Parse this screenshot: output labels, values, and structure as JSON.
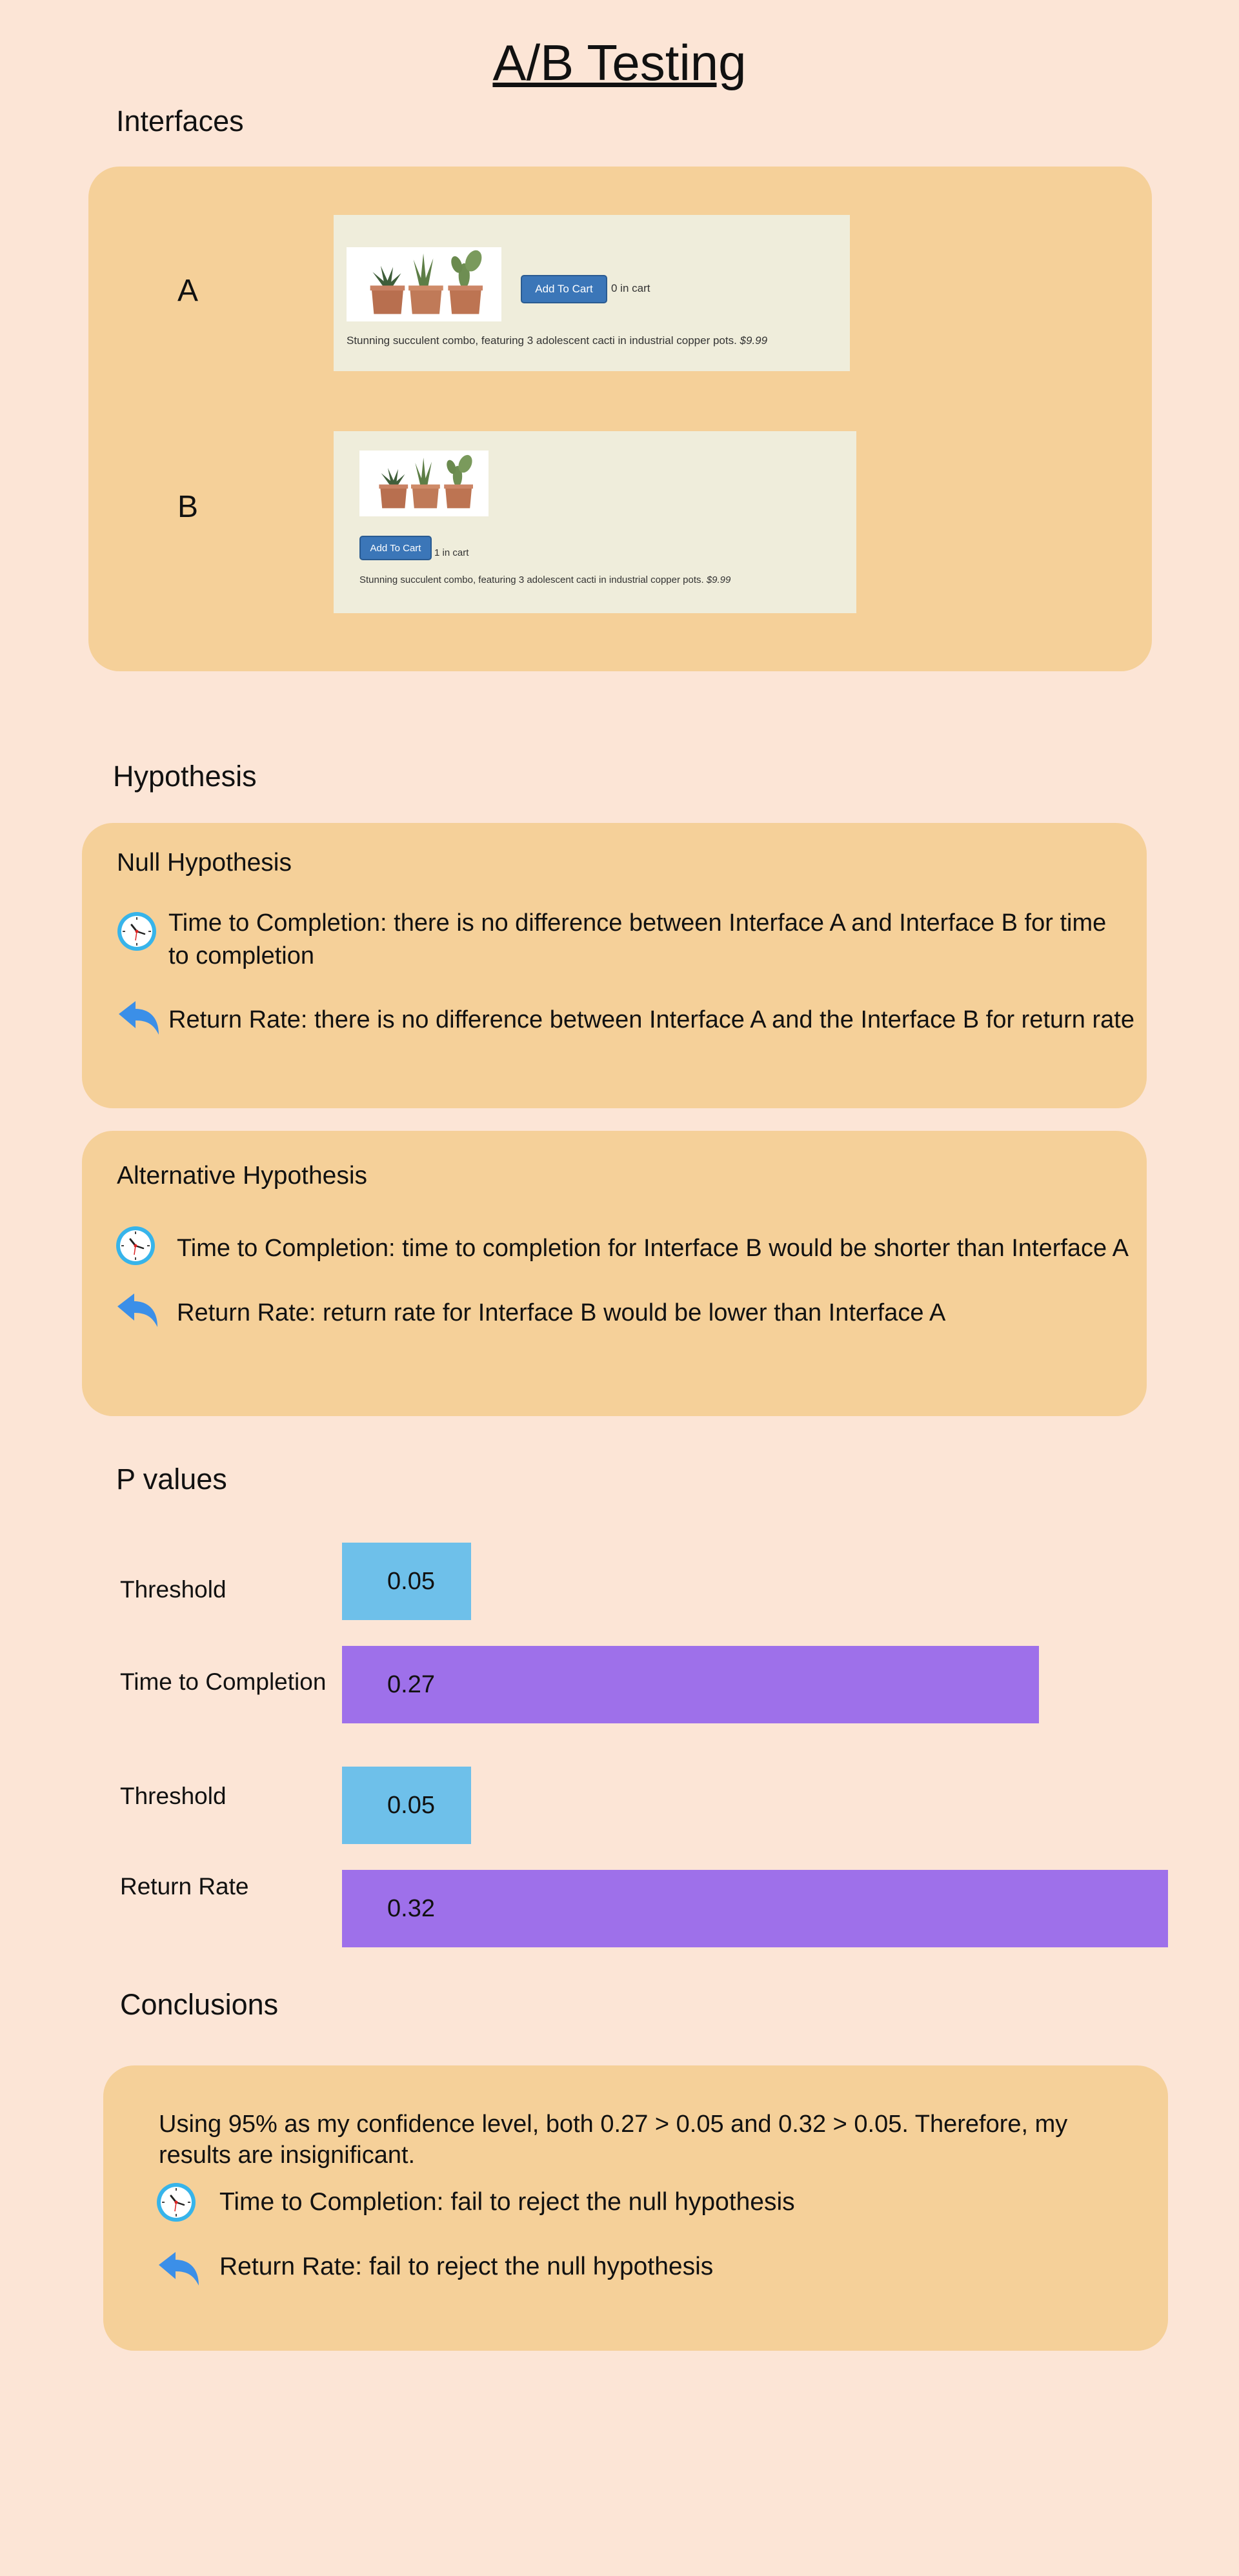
{
  "page": {
    "title": "A/B Testing"
  },
  "interfaces": {
    "heading": "Interfaces",
    "a": {
      "label": "A",
      "button_label": "Add To Cart",
      "cart_text": "0 in cart",
      "description": "Stunning succulent combo, featuring 3 adolescent cacti in industrial copper pots.",
      "price": "$9.99"
    },
    "b": {
      "label": "B",
      "button_label": "Add To Cart",
      "cart_text": "1 in cart",
      "description": "Stunning succulent combo, featuring 3 adolescent cacti in industrial copper pots.",
      "price": "$9.99"
    }
  },
  "hypothesis": {
    "heading": "Hypothesis",
    "null": {
      "title": "Null Hypothesis",
      "time_to_completion": "Time to Completion: there is no difference between Interface A and Interface B for time to completion",
      "return_rate": "Return Rate: there is no difference between Interface A and the Interface B for return rate"
    },
    "alternative": {
      "title": "Alternative Hypothesis",
      "time_to_completion": "Time to Completion: time to completion for Interface B would be shorter than Interface A",
      "return_rate": "Return Rate: return rate for Interface B would be lower than Interface A"
    }
  },
  "chart_data": {
    "type": "bar",
    "title": "P values",
    "categories": [
      "Threshold",
      "Time to Completion",
      "Threshold",
      "Return Rate"
    ],
    "values": [
      0.05,
      0.27,
      0.05,
      0.32
    ],
    "value_labels": [
      "0.05",
      "0.27",
      "0.05",
      "0.32"
    ],
    "colors": [
      "#6ec0ea",
      "#9e70ea",
      "#6ec0ea",
      "#9e70ea"
    ],
    "xlabel": "",
    "ylabel": "",
    "xlim": [
      0,
      0.32
    ],
    "grid": false
  },
  "conclusions": {
    "heading": "Conclusions",
    "summary": "Using 95% as  my confidence level, both 0.27 > 0.05 and 0.32 > 0.05. Therefore, my results are insignificant.",
    "time_to_completion": "Time to Completion: fail to reject the null hypothesis",
    "return_rate": "Return Rate: fail to reject the null hypothesis"
  },
  "icons": {
    "clock": "clock-icon",
    "return": "return-arrow-icon",
    "accent_blue": "#3b8fe8",
    "panel_color": "#f5d099",
    "background": "#fce5d6"
  }
}
